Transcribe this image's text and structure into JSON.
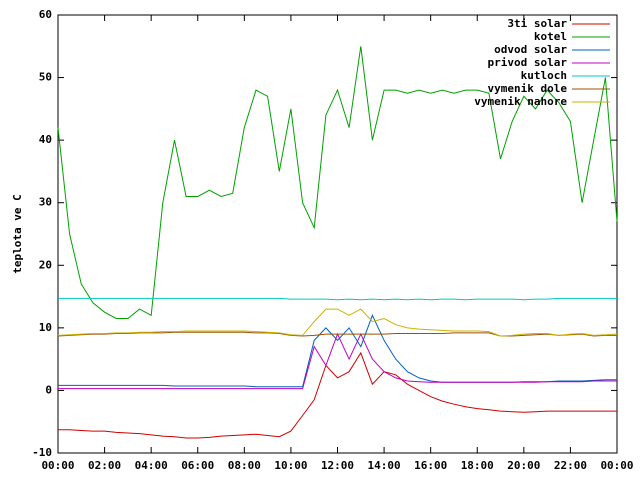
{
  "chart_data": {
    "type": "line",
    "y_label": "teplota ve C",
    "x": [
      0,
      0.5,
      1,
      1.5,
      2,
      2.5,
      3,
      3.5,
      4,
      4.5,
      5,
      5.5,
      6,
      6.5,
      7,
      7.5,
      8,
      8.5,
      9,
      9.5,
      10,
      10.5,
      11,
      11.5,
      12,
      12.5,
      13,
      13.5,
      14,
      14.5,
      15,
      15.5,
      16,
      16.5,
      17,
      17.5,
      18,
      18.5,
      19,
      19.5,
      20,
      20.5,
      21,
      21.5,
      22,
      22.5,
      23,
      23.5,
      24
    ],
    "xlim": [
      0,
      24
    ],
    "xticks": [
      {
        "value": 0,
        "label": "00:00"
      },
      {
        "value": 2,
        "label": "02:00"
      },
      {
        "value": 4,
        "label": "04:00"
      },
      {
        "value": 6,
        "label": "06:00"
      },
      {
        "value": 8,
        "label": "08:00"
      },
      {
        "value": 10,
        "label": "10:00"
      },
      {
        "value": 12,
        "label": "12:00"
      },
      {
        "value": 14,
        "label": "14:00"
      },
      {
        "value": 16,
        "label": "16:00"
      },
      {
        "value": 18,
        "label": "18:00"
      },
      {
        "value": 20,
        "label": "20:00"
      },
      {
        "value": 22,
        "label": "22:00"
      },
      {
        "value": 24,
        "label": "00:00"
      }
    ],
    "ylim": [
      -10,
      60
    ],
    "yticks": [
      -10,
      0,
      10,
      20,
      30,
      40,
      50,
      60
    ],
    "legend": "top-right",
    "series": [
      {
        "name": "3ti solar",
        "color": "#d00000",
        "values": [
          -6.3,
          -6.3,
          -6.4,
          -6.5,
          -6.5,
          -6.7,
          -6.8,
          -6.9,
          -7.1,
          -7.3,
          -7.4,
          -7.6,
          -7.6,
          -7.5,
          -7.3,
          -7.2,
          -7.1,
          -7.0,
          -7.2,
          -7.4,
          -6.5,
          -4,
          -1.5,
          4,
          2,
          3,
          6,
          1,
          3,
          2.5,
          1,
          0,
          -1,
          -1.7,
          -2.2,
          -2.6,
          -2.9,
          -3.1,
          -3.3,
          -3.4,
          -3.5,
          -3.4,
          -3.3,
          -3.3,
          -3.3,
          -3.3,
          -3.3,
          -3.3,
          -3.3
        ]
      },
      {
        "name": "kotel",
        "color": "#00a000",
        "values": [
          42,
          25,
          17,
          14,
          12.5,
          11.5,
          11.5,
          13,
          12,
          30,
          40,
          31,
          31,
          32,
          31,
          31.5,
          42,
          48,
          47,
          35,
          45,
          30,
          26,
          44,
          48,
          42,
          55,
          40,
          48,
          48,
          47.5,
          48,
          47.5,
          48,
          47.5,
          48,
          48,
          47.5,
          37,
          43,
          47,
          45,
          48,
          46,
          43,
          30,
          40,
          50,
          27
        ]
      },
      {
        "name": "odvod solar",
        "color": "#0060c0",
        "values": [
          0.8,
          0.8,
          0.8,
          0.8,
          0.8,
          0.8,
          0.8,
          0.8,
          0.8,
          0.8,
          0.7,
          0.7,
          0.7,
          0.7,
          0.7,
          0.7,
          0.7,
          0.6,
          0.6,
          0.6,
          0.6,
          0.6,
          8,
          10,
          8,
          10,
          7,
          12,
          8,
          5,
          3,
          2,
          1.5,
          1.3,
          1.3,
          1.3,
          1.3,
          1.3,
          1.3,
          1.3,
          1.4,
          1.4,
          1.4,
          1.5,
          1.5,
          1.5,
          1.6,
          1.7,
          1.7
        ]
      },
      {
        "name": "privod solar",
        "color": "#c000c0",
        "values": [
          0.3,
          0.3,
          0.3,
          0.3,
          0.3,
          0.3,
          0.3,
          0.3,
          0.3,
          0.3,
          0.3,
          0.3,
          0.3,
          0.3,
          0.3,
          0.3,
          0.3,
          0.3,
          0.3,
          0.3,
          0.3,
          0.3,
          7,
          4,
          9,
          5,
          9,
          5,
          3,
          2,
          1.5,
          1.4,
          1.3,
          1.3,
          1.3,
          1.3,
          1.3,
          1.3,
          1.3,
          1.3,
          1.3,
          1.3,
          1.4,
          1.4,
          1.4,
          1.4,
          1.5,
          1.5,
          1.5
        ]
      },
      {
        "name": "kutloch",
        "color": "#00c8c8",
        "values": [
          14.7,
          14.7,
          14.7,
          14.7,
          14.7,
          14.7,
          14.7,
          14.7,
          14.7,
          14.7,
          14.7,
          14.7,
          14.7,
          14.7,
          14.7,
          14.7,
          14.7,
          14.7,
          14.7,
          14.7,
          14.6,
          14.6,
          14.6,
          14.6,
          14.5,
          14.6,
          14.5,
          14.6,
          14.5,
          14.6,
          14.5,
          14.6,
          14.5,
          14.6,
          14.6,
          14.5,
          14.6,
          14.6,
          14.6,
          14.6,
          14.5,
          14.6,
          14.6,
          14.7,
          14.7,
          14.7,
          14.7,
          14.7,
          14.7
        ]
      },
      {
        "name": "vymenik dole",
        "color": "#a05000",
        "values": [
          8.7,
          8.8,
          8.9,
          9.0,
          9.0,
          9.1,
          9.1,
          9.2,
          9.2,
          9.2,
          9.3,
          9.3,
          9.3,
          9.3,
          9.3,
          9.3,
          9.3,
          9.2,
          9.2,
          9.1,
          8.8,
          8.7,
          8.8,
          9.0,
          9.0,
          9.0,
          9.0,
          9.0,
          9.0,
          9.1,
          9.1,
          9.1,
          9.1,
          9.1,
          9.2,
          9.2,
          9.2,
          9.2,
          8.7,
          8.7,
          8.8,
          8.9,
          9.0,
          8.8,
          8.9,
          9.0,
          8.7,
          8.8,
          8.8
        ]
      },
      {
        "name": "vymenik nahore",
        "color": "#c8b400",
        "values": [
          8.8,
          8.9,
          9.0,
          9.1,
          9.1,
          9.2,
          9.2,
          9.3,
          9.3,
          9.4,
          9.4,
          9.5,
          9.5,
          9.5,
          9.5,
          9.5,
          9.5,
          9.4,
          9.3,
          9.2,
          8.9,
          8.8,
          11,
          13,
          13,
          12,
          13,
          11,
          11.5,
          10.5,
          10,
          9.8,
          9.7,
          9.6,
          9.5,
          9.5,
          9.5,
          9.4,
          8.7,
          8.8,
          9.0,
          9.1,
          9.1,
          8.8,
          9.0,
          9.1,
          8.8,
          8.9,
          9.0
        ]
      }
    ]
  }
}
